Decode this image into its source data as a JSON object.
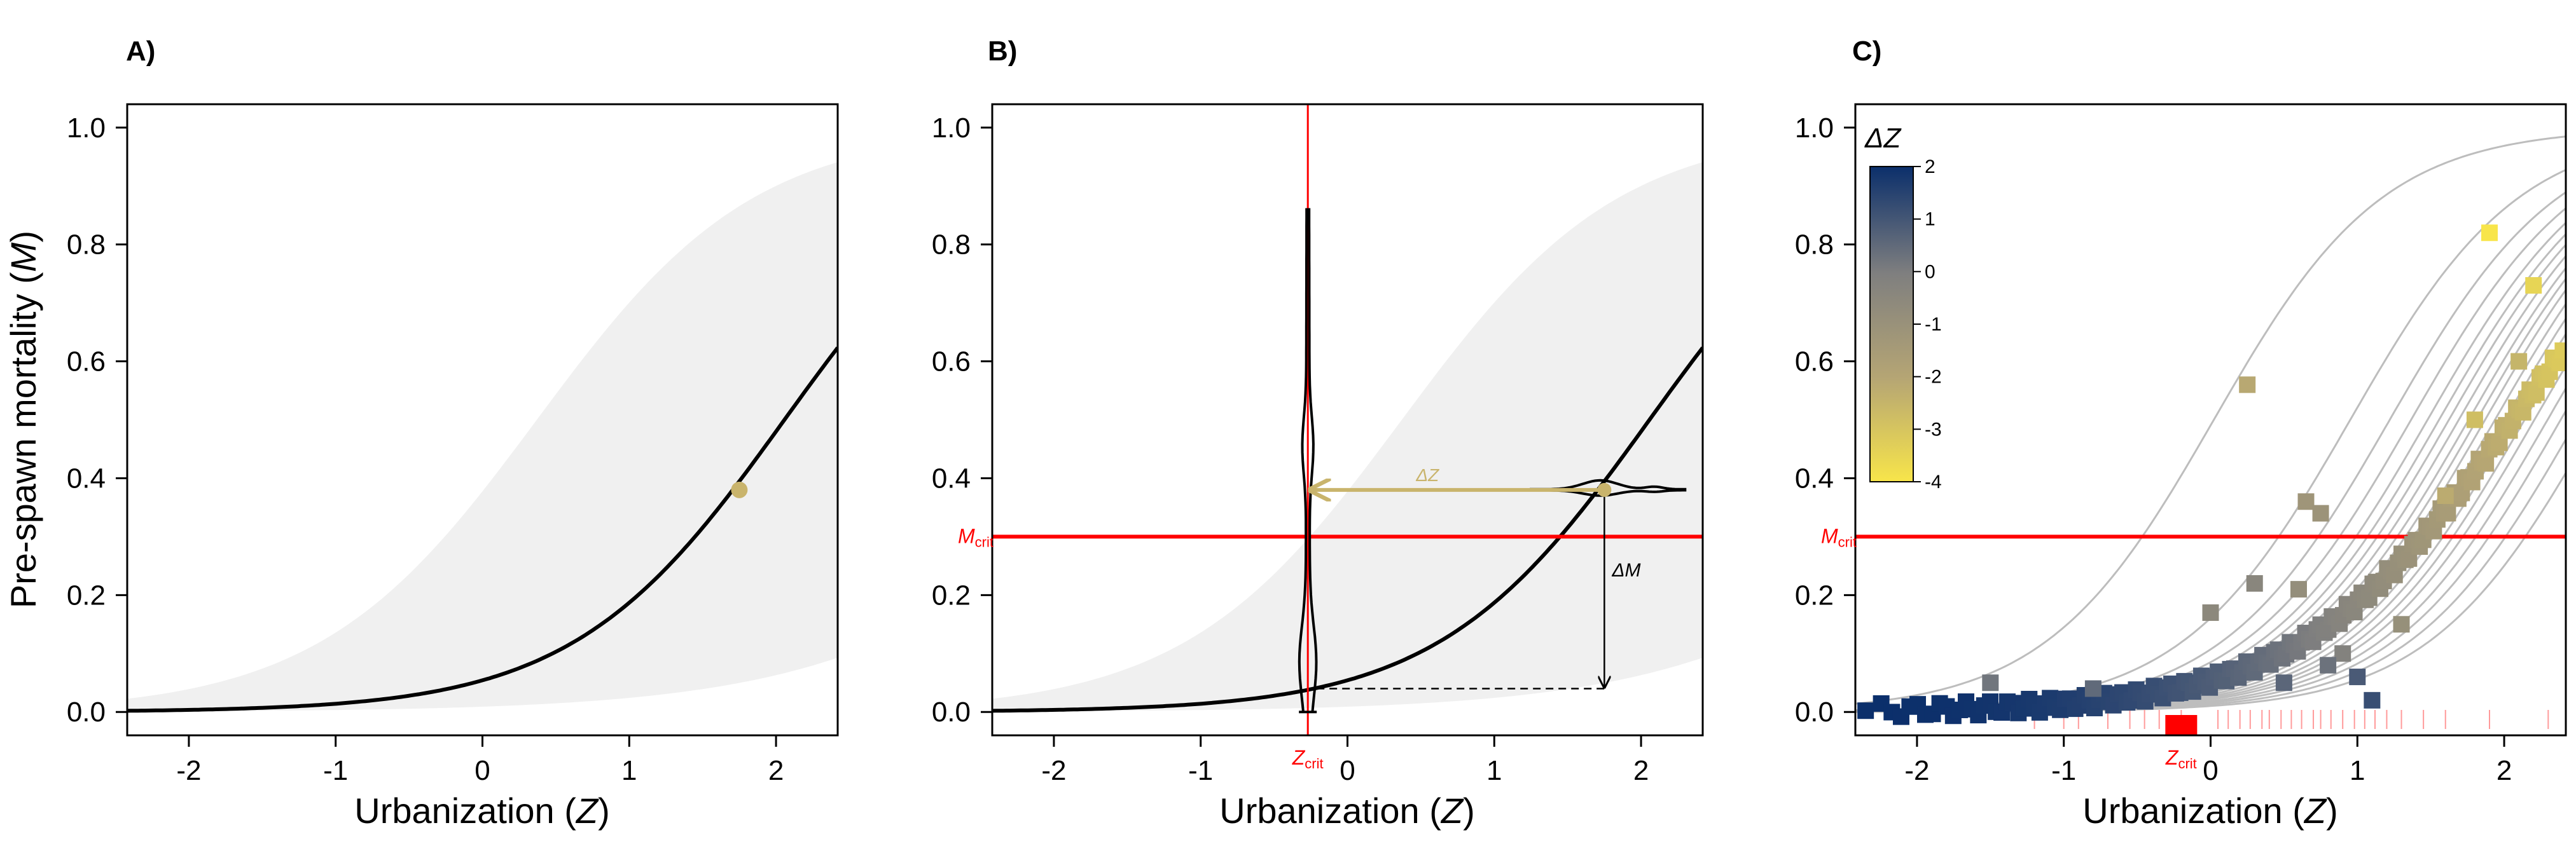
{
  "figure": {
    "ylabel_pre": "Pre-spawn mortality (",
    "ylabel_var": "M",
    "ylabel_post": ")",
    "xlabel_pre": "Urbanization (",
    "xlabel_var": "Z",
    "xlabel_post": ")"
  },
  "colors": {
    "band": "#f0f0f0",
    "curve": "#000000",
    "crit": "#ff0000",
    "point_gold": "#c9b46c",
    "gray_curve": "#bdbdbd",
    "cmap_low": "#f8e54a",
    "cmap_mid": "#7f7f7f",
    "cmap_high": "#0b2f6b"
  },
  "annotations": {
    "m_crit": "M",
    "m_crit_sub": "crit",
    "z_crit": "Z",
    "z_crit_sub": "crit",
    "delta_z": "ΔZ",
    "delta_m": "ΔM",
    "colorbar_title": "ΔZ"
  },
  "chart_data": [
    {
      "type": "line",
      "panel": "A)",
      "xlim": [
        -2.42,
        2.42
      ],
      "ylim": [
        -0.04,
        1.04
      ],
      "xticks": [
        -2,
        -1,
        0,
        1,
        2
      ],
      "yticks": [
        "0.0",
        "0.2",
        "0.4",
        "0.6",
        "0.8",
        "1.0"
      ],
      "curve": {
        "intercept": -2.86,
        "slope": 1.39
      },
      "band": {
        "lower": {
          "intercept": -4.7,
          "slope": 1.0
        },
        "upper": {
          "intercept": -0.5,
          "slope": 1.35
        }
      },
      "points": [
        {
          "x": 1.75,
          "y": 0.38
        }
      ]
    },
    {
      "type": "line",
      "panel": "B)",
      "xlim": [
        -2.42,
        2.42
      ],
      "ylim": [
        -0.04,
        1.04
      ],
      "xticks": [
        -2,
        -1,
        0,
        1,
        2
      ],
      "yticks": [
        "0.0",
        "0.2",
        "0.4",
        "0.6",
        "0.8",
        "1.0"
      ],
      "curve": {
        "intercept": -2.86,
        "slope": 1.39
      },
      "band": {
        "lower": {
          "intercept": -4.7,
          "slope": 1.0
        },
        "upper": {
          "intercept": -0.5,
          "slope": 1.35
        }
      },
      "m_crit": 0.3,
      "z_crit": -0.27,
      "z_obs": 1.75,
      "m_obs": 0.38,
      "m_at_zcrit": 0.04
    },
    {
      "type": "scatter",
      "panel": "C)",
      "xlim": [
        -2.42,
        2.42
      ],
      "ylim": [
        -0.04,
        1.04
      ],
      "xticks": [
        -2,
        -1,
        0,
        1,
        2
      ],
      "yticks": [
        "0.0",
        "0.2",
        "0.4",
        "0.6",
        "0.8",
        "1.0"
      ],
      "m_crit": 0.3,
      "z_crit": -0.2,
      "colorbar": {
        "min": -4,
        "max": 2,
        "ticks": [
          "2",
          "1",
          "0",
          "-1",
          "-2",
          "-3",
          "-4"
        ]
      },
      "curve": {
        "intercept": -2.86,
        "slope": 1.39
      },
      "gray_curve_shifts": [
        -1.45,
        -0.62,
        -0.38,
        -0.25,
        -0.15,
        -0.08,
        -0.02,
        0.04,
        0.1,
        0.15,
        0.2,
        0.26,
        0.32,
        0.38,
        0.44,
        0.5,
        0.58,
        0.66,
        0.76,
        0.88
      ],
      "rug_x": [
        -1.2,
        -1.0,
        -0.9,
        -0.7,
        -0.55,
        -0.45,
        -0.35,
        -0.2,
        0.05,
        0.12,
        0.2,
        0.27,
        0.35,
        0.4,
        0.48,
        0.55,
        0.62,
        0.7,
        0.75,
        0.82,
        0.9,
        0.98,
        1.05,
        1.12,
        1.2,
        1.3,
        1.45,
        1.6,
        1.9,
        2.3
      ],
      "outliers": [
        {
          "x": 1.9,
          "y": 0.82,
          "dz": -4
        },
        {
          "x": 2.2,
          "y": 0.73,
          "dz": -3.5
        },
        {
          "x": 0.25,
          "y": 0.56,
          "dz": -2.1
        },
        {
          "x": 2.1,
          "y": 0.6,
          "dz": -2.5
        },
        {
          "x": 1.8,
          "y": 0.5,
          "dz": -2.8
        },
        {
          "x": 0.65,
          "y": 0.36,
          "dz": -1.2
        },
        {
          "x": 0.75,
          "y": 0.34,
          "dz": -1.1
        },
        {
          "x": 0.6,
          "y": 0.21,
          "dz": -0.8
        },
        {
          "x": 0.3,
          "y": 0.22,
          "dz": -0.4
        },
        {
          "x": 0.0,
          "y": 0.17,
          "dz": -0.5
        },
        {
          "x": 1.6,
          "y": 0.37,
          "dz": -2.2
        },
        {
          "x": 1.1,
          "y": 0.02,
          "dz": 1.2
        },
        {
          "x": -1.5,
          "y": 0.05,
          "dz": 0.2
        },
        {
          "x": -0.8,
          "y": 0.04,
          "dz": 0.5
        },
        {
          "x": 0.9,
          "y": 0.1,
          "dz": -0.2
        },
        {
          "x": 1.3,
          "y": 0.15,
          "dz": -0.9
        },
        {
          "x": 0.5,
          "y": 0.05,
          "dz": 0.6
        },
        {
          "x": 0.8,
          "y": 0.08,
          "dz": 0.3
        },
        {
          "x": 1.0,
          "y": 0.06,
          "dz": 0.9
        }
      ]
    }
  ]
}
